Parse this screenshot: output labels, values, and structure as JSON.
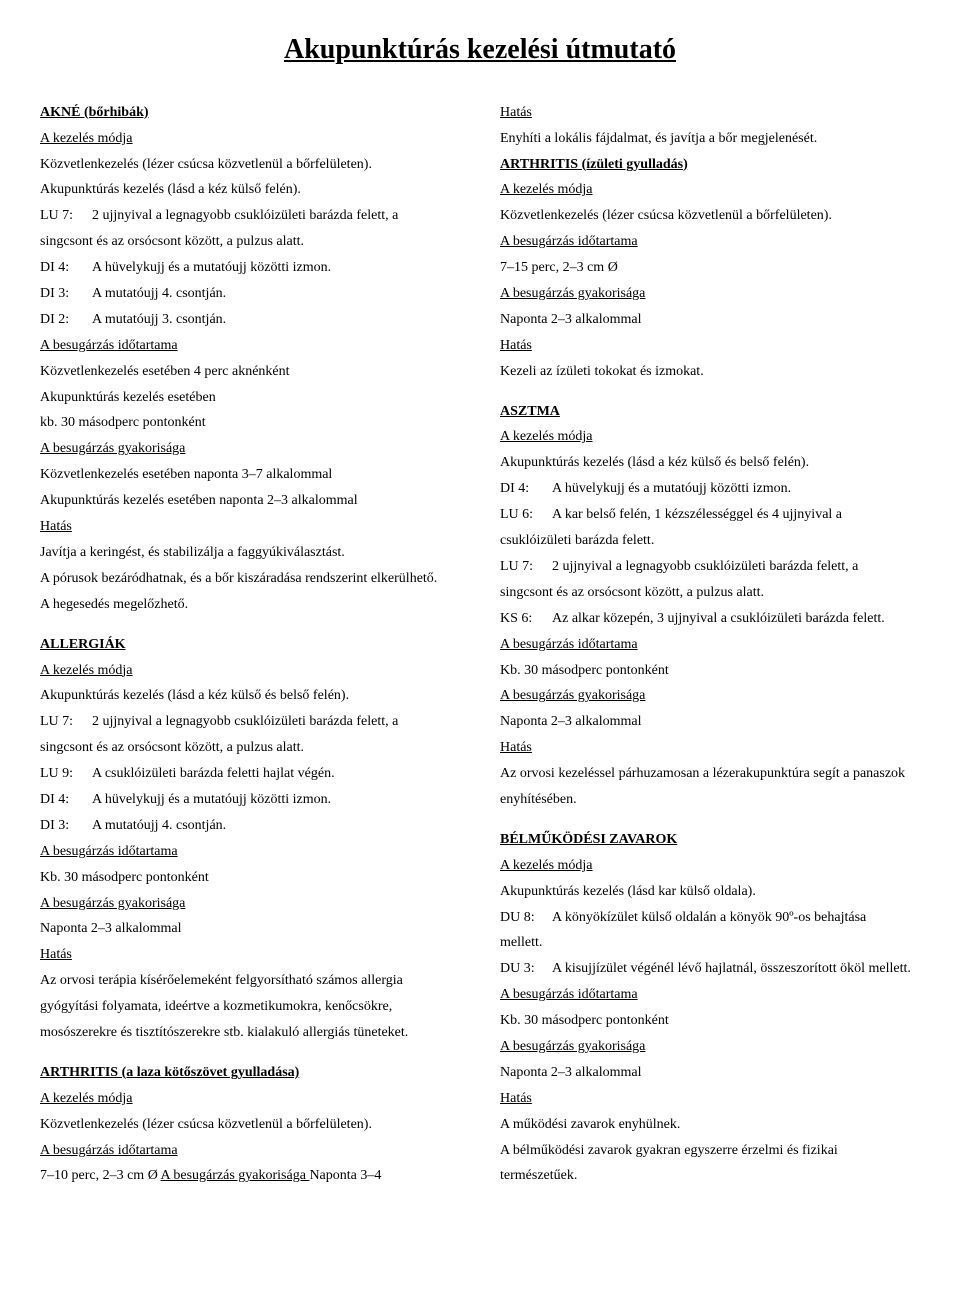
{
  "title": "Akupunktúrás kezelési útmutató",
  "left": {
    "akne_heading": "AKNÉ (bőrhibák)",
    "treatment_mode_label": "A kezelés módja",
    "akne_direct": "Közvetlenkezelés (lézer csúcsa közvetlenül a bőrfelületen).",
    "akne_acu": "Akupunktúrás kezelés (lásd a kéz külső felén).",
    "lu7_code": "LU 7:",
    "lu7_text": "2 ujjnyival a legnagyobb csuklóizületi barázda felett, a",
    "lu7_cont": "singcsont és az orsócsont között, a pulzus alatt.",
    "di4_code": "DI 4:",
    "di4_text": "A hüvelykujj és a mutatóujj közötti izmon.",
    "di3_code": "DI 3:",
    "di3_text": "A mutatóujj 4. csontján.",
    "di2_code": "DI 2:",
    "di2_text": "A mutatóujj 3. csontján.",
    "irr_duration_label": "A besugárzás időtartama",
    "akne_dur1": "Közvetlenkezelés esetében 4 perc aknénként",
    "akne_dur2": "Akupunktúrás kezelés esetében",
    "akne_dur3": "kb. 30 másodperc pontonként",
    "irr_freq_label": "A besugárzás gyakorisága",
    "akne_freq1": "Közvetlenkezelés esetében naponta 3–7 alkalommal",
    "akne_freq2": "Akupunktúrás kezelés esetében naponta 2–3 alkalommal",
    "effect_label": "Hatás",
    "akne_eff1": "Javítja a keringést, és stabilizálja a faggyúkiválasztást.",
    "akne_eff2": "A pórusok bezáródhatnak, és a bőr kiszáradása rendszerint elkerülhető.",
    "akne_eff3": "A hegesedés megelőzhető.",
    "allergia_heading": "ALLERGIÁK",
    "allergia_acu": "Akupunktúrás kezelés (lásd a kéz külső és belső felén).",
    "lu9_code": "LU 9:",
    "lu9_text": "A csuklóizületi barázda feletti hajlat végén.",
    "allergia_dur": "Kb. 30 másodperc pontonként",
    "allergia_freq": "Naponta 2–3 alkalommal",
    "allergia_eff1": "Az orvosi terápia kísérőelemeként felgyorsítható számos allergia",
    "allergia_eff2": "gyógyítási folyamata, ideértve a kozmetikumokra, kenőcsökre,",
    "allergia_eff3": "mosószerekre és tisztítószerekre stb. kialakuló allergiás tüneteket.",
    "arthritis_loose_heading": "ARTHRITIS (a laza kötőszövet gyulladása)",
    "arthritis_loose_direct": "Közvetlenkezelés (lézer csúcsa közvetlenül a bőrfelületen).",
    "arthritis_loose_dur_a": "7–10 perc, 2–3 cm Ø  ",
    "arthritis_loose_freq_label": "A besugárzás gyakorisága ",
    "arthritis_loose_freq_val": "Naponta 3–4"
  },
  "right": {
    "effect_label": "Hatás",
    "arth_loose_eff": "Enyhíti a lokális fájdalmat, és javítja a bőr megjelenését.",
    "arthritis_heading": "ARTHRITIS (ízületi gyulladás)",
    "treatment_mode_label": "A kezelés módja",
    "arth_direct": "Közvetlenkezelés (lézer csúcsa közvetlenül a bőrfelületen).",
    "irr_duration_label": "A besugárzás időtartama",
    "arth_dur": "7–15 perc, 2–3 cm Ø",
    "irr_freq_label": "A besugárzás gyakorisága",
    "arth_freq": "Naponta 2–3 alkalommal",
    "arth_eff": "Kezeli az ízületi tokokat és izmokat.",
    "asztma_heading": "ASZTMA",
    "asztma_acu": "Akupunktúrás kezelés (lásd a kéz külső és belső felén).",
    "di4_code": "DI 4:",
    "di4_text": "A hüvelykujj és a mutatóujj közötti izmon.",
    "lu6_code": "LU 6:",
    "lu6_text": "A kar belső felén, 1 kézszélességgel és 4 ujjnyival a",
    "lu6_cont": "csuklóizületi barázda felett.",
    "lu7_code": "LU 7:",
    "lu7_text": "2 ujjnyival a legnagyobb csuklóizületi barázda felett, a",
    "lu7_cont": "singcsont és az orsócsont között, a pulzus alatt.",
    "ks6_code": "KS 6:",
    "ks6_text": "Az alkar közepén, 3 ujjnyival a csuklóizületi barázda felett.",
    "asztma_dur": "Kb. 30 másodperc pontonként",
    "asztma_freq": "Naponta 2–3 alkalommal",
    "asztma_eff1": "Az orvosi kezeléssel párhuzamosan a lézerakupunktúra segít a panaszok",
    "asztma_eff2": "enyhítésében.",
    "bel_heading": "BÉLMŰKÖDÉSI ZAVAROK",
    "bel_acu": "Akupunktúrás kezelés (lásd kar külső oldala).",
    "du8_code": "DU 8:",
    "du8_text": "A könyökízület külső oldalán a könyök 90º-os behajtása",
    "du8_cont": "mellett.",
    "du3_code": "DU 3:",
    "du3_text": "A kisujjízület végénél lévő hajlatnál, összeszorított ököl mellett.",
    "bel_dur": "Kb. 30 másodperc pontonként",
    "bel_freq": "Naponta 2–3 alkalommal",
    "bel_eff1": "A működési zavarok enyhülnek.",
    "bel_eff2": "A bélműködési zavarok gyakran egyszerre érzelmi és fizikai",
    "bel_eff3": "természetűek."
  }
}
